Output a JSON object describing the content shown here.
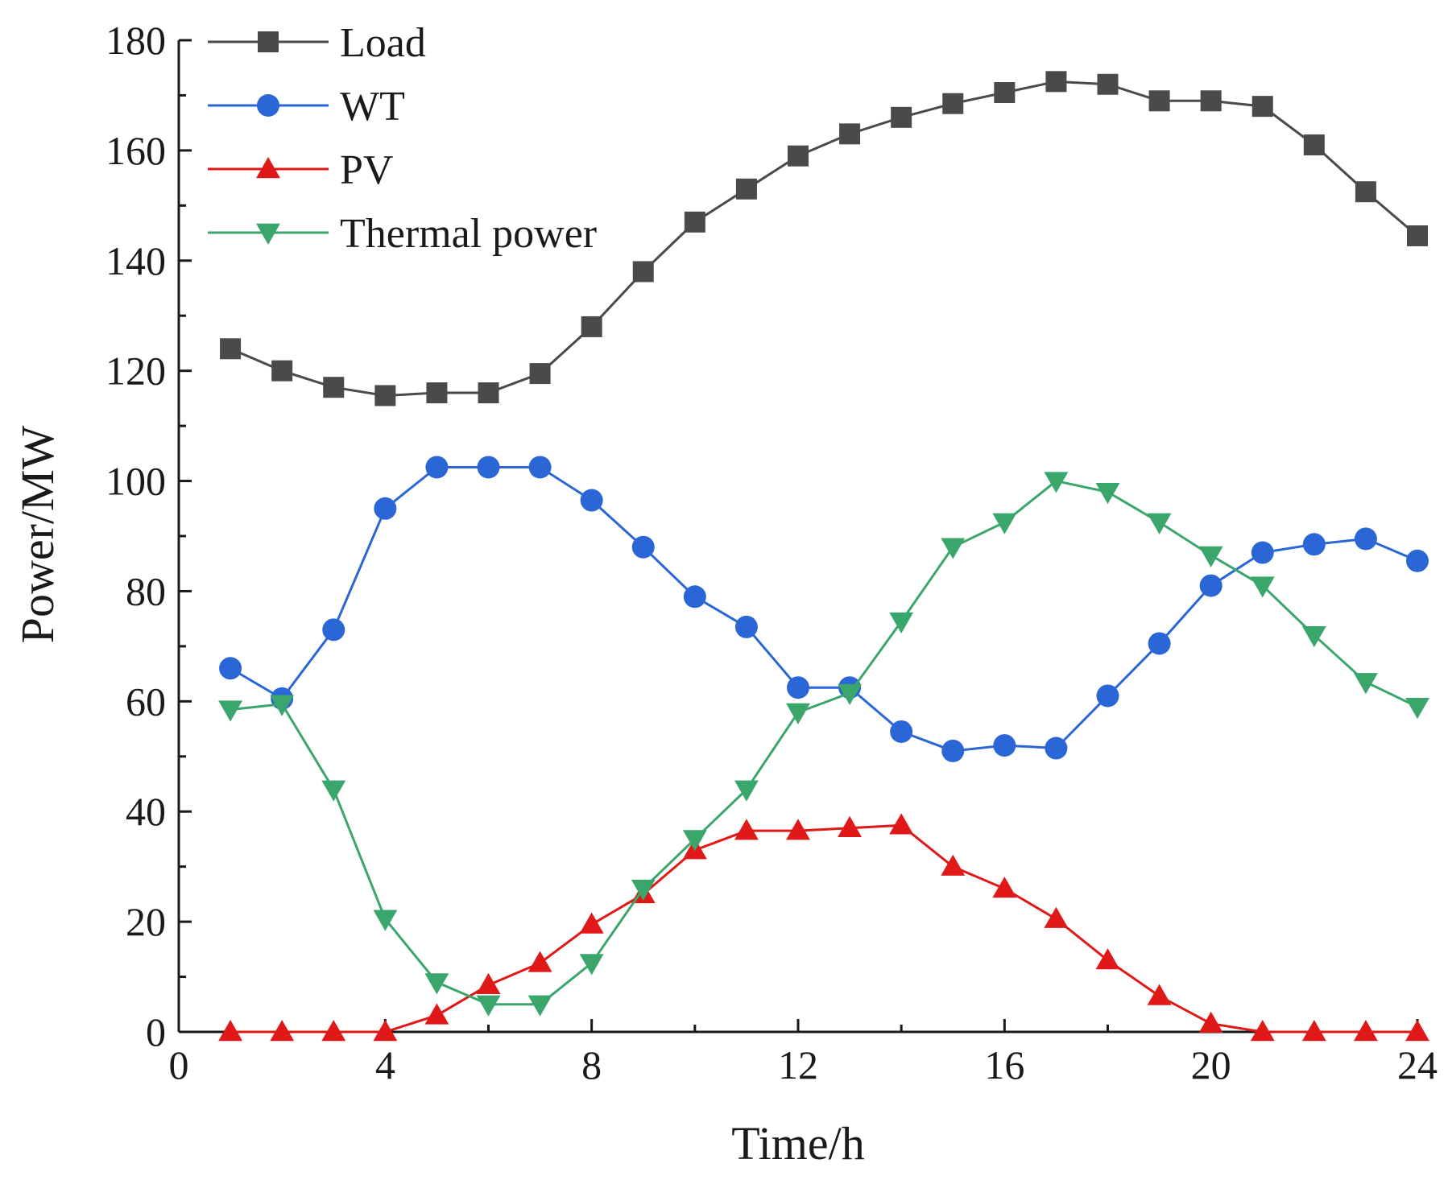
{
  "chart_data": {
    "type": "line",
    "title": "",
    "xlabel": "Time/h",
    "ylabel": "Power/MW",
    "xlim": [
      0,
      24
    ],
    "ylim": [
      0,
      180
    ],
    "xticks": [
      0,
      4,
      8,
      12,
      16,
      20,
      24
    ],
    "yticks": [
      0,
      20,
      40,
      60,
      80,
      100,
      120,
      140,
      160,
      180
    ],
    "xtick_labels": [
      "0",
      "4",
      "8",
      "12",
      "16",
      "20",
      "24"
    ],
    "ytick_labels": [
      "0",
      "20",
      "40",
      "60",
      "80",
      "100",
      "120",
      "140",
      "160",
      "180"
    ],
    "grid": false,
    "legend_position": "top-left",
    "x": [
      1,
      2,
      3,
      4,
      5,
      6,
      7,
      8,
      9,
      10,
      11,
      12,
      13,
      14,
      15,
      16,
      17,
      18,
      19,
      20,
      21,
      22,
      23,
      24
    ],
    "series": [
      {
        "name": "Load",
        "marker": "square",
        "color": "#4a4a4a",
        "values": [
          124,
          120,
          117,
          115.5,
          116,
          116,
          119.5,
          128,
          138,
          147,
          153,
          159,
          163,
          166,
          168.5,
          170.5,
          172.5,
          172,
          169,
          169,
          168,
          161,
          152.5,
          144.5
        ]
      },
      {
        "name": "WT",
        "marker": "circle",
        "color": "#2a66d6",
        "values": [
          66,
          60.5,
          73,
          95,
          102.5,
          102.5,
          102.5,
          96.5,
          88,
          79,
          73.5,
          62.5,
          62.5,
          54.5,
          51,
          52,
          51.5,
          61,
          70.5,
          81,
          87,
          88.5,
          89.5,
          85.5
        ]
      },
      {
        "name": "PV",
        "marker": "triangle-up",
        "color": "#e01818",
        "values": [
          0,
          0,
          0,
          0,
          3,
          8.5,
          12.5,
          19.5,
          25,
          33,
          36.5,
          36.5,
          37,
          37.5,
          30,
          26,
          20.5,
          13,
          6.5,
          1.5,
          0,
          0,
          0,
          0
        ]
      },
      {
        "name": "Thermal power",
        "marker": "triangle-down",
        "color": "#3aa66c",
        "values": [
          58.5,
          59.5,
          44,
          20.5,
          9,
          5,
          5,
          12.5,
          26,
          35,
          44,
          58,
          61.5,
          74.5,
          88,
          92.5,
          100,
          98,
          92.5,
          86.5,
          81,
          72,
          63.5,
          59
        ]
      }
    ]
  }
}
